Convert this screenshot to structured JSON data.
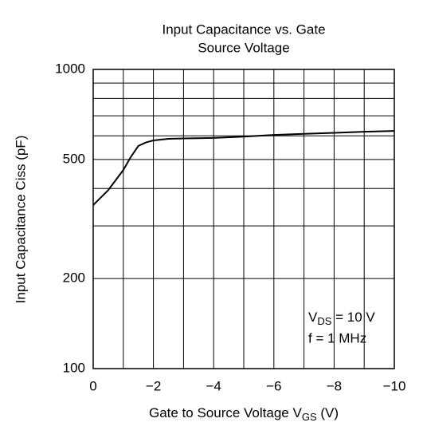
{
  "chart_data": {
    "type": "line",
    "title": [
      "Input Capacitance vs. Gate",
      "Source Voltage"
    ],
    "xlabel": {
      "main": "Gate to Source Voltage  V",
      "sub": "GS",
      "unit": "  (V)"
    },
    "ylabel": "Input Capacitance  Ciss  (pF)",
    "annotations": [
      {
        "main": "V",
        "sub": "DS",
        "rest": " = 10 V"
      },
      {
        "main": "f = 1 MHz"
      }
    ],
    "x": [
      0,
      -0.5,
      -1,
      -1.25,
      -1.5,
      -1.75,
      -2,
      -2.5,
      -3,
      -4,
      -5,
      -6,
      -7,
      -8,
      -9,
      -10
    ],
    "series": [
      {
        "name": "Ciss",
        "color": "#000000",
        "values": [
          352,
          395,
          461,
          510,
          555,
          570,
          579,
          586,
          588,
          590,
          596,
          604,
          609,
          614,
          619,
          623
        ]
      }
    ],
    "xlim": [
      0,
      -10
    ],
    "xticks": [
      0,
      {
        "value": -2,
        "label": "−2"
      },
      {
        "value": -4,
        "label": "−4"
      },
      {
        "value": -6,
        "label": "−6"
      },
      {
        "value": -8,
        "label": "−8"
      },
      {
        "value": -10,
        "label": "−10"
      }
    ],
    "minor_xticks": [
      -1,
      -3,
      -5,
      -7,
      -9
    ],
    "ylim": [
      100,
      1000
    ],
    "yticks": [
      100,
      200,
      500,
      1000
    ],
    "minor_yticks": [
      300,
      400,
      600,
      700,
      800,
      900
    ],
    "log_y": true,
    "grid": true
  }
}
